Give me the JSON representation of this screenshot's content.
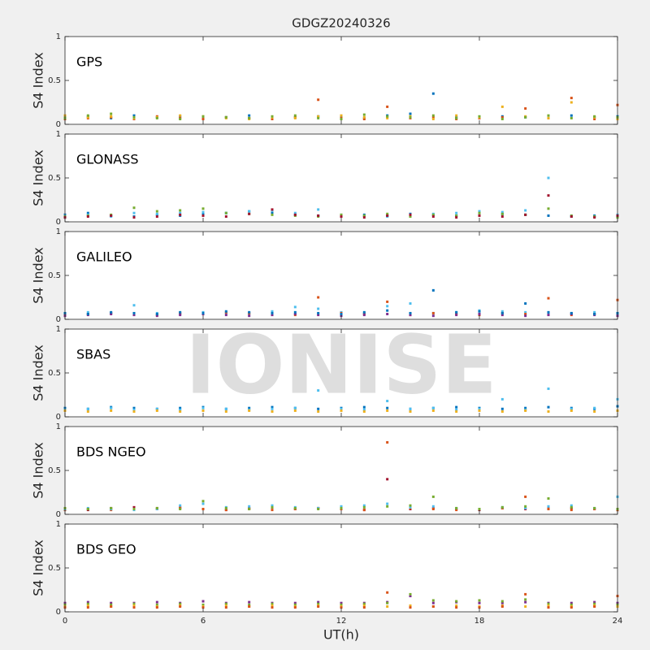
{
  "watermark": "IONISE",
  "chart_data": [
    {
      "type": "scatter",
      "title": "GDGZ20240326",
      "annotation": "GPS",
      "ylabel": "S4 Index",
      "x": [
        0,
        1,
        2,
        3,
        4,
        5,
        6,
        7,
        8,
        9,
        10,
        11,
        12,
        13,
        14,
        15,
        16,
        17,
        18,
        19,
        20,
        21,
        22,
        23,
        24
      ],
      "xlim": [
        0,
        24
      ],
      "xticks": [
        0,
        6,
        12,
        18,
        24
      ],
      "ylim": [
        0,
        1
      ],
      "yticks": [
        0,
        0.5,
        1
      ],
      "series": [
        {
          "color": "#0072BD",
          "values": [
            0.08,
            0.09,
            0.07,
            0.1,
            0.08,
            0.09,
            0.07,
            0.08,
            0.1,
            0.07,
            0.08,
            0.09,
            0.08,
            0.07,
            0.1,
            0.12,
            0.35,
            0.08,
            0.07,
            0.09,
            0.08,
            0.07,
            0.1,
            0.08,
            0.09
          ]
        },
        {
          "color": "#D95319",
          "values": [
            0.06,
            0.07,
            0.08,
            0.06,
            0.09,
            0.07,
            0.06,
            0.08,
            0.07,
            0.06,
            0.08,
            0.28,
            0.07,
            0.06,
            0.2,
            0.07,
            0.08,
            0.06,
            0.07,
            0.08,
            0.18,
            0.07,
            0.3,
            0.06,
            0.22
          ]
        },
        {
          "color": "#EDB120",
          "values": [
            0.1,
            0.08,
            0.09,
            0.07,
            0.08,
            0.1,
            0.09,
            0.07,
            0.06,
            0.08,
            0.07,
            0.09,
            0.1,
            0.08,
            0.07,
            0.09,
            0.06,
            0.1,
            0.08,
            0.2,
            0.09,
            0.07,
            0.25,
            0.08,
            0.06
          ]
        },
        {
          "color": "#77AC30",
          "values": [
            0.07,
            0.1,
            0.12,
            0.08,
            0.07,
            0.06,
            0.09,
            0.08,
            0.07,
            0.09,
            0.1,
            0.07,
            0.06,
            0.11,
            0.09,
            0.08,
            0.1,
            0.07,
            0.09,
            0.06,
            0.08,
            0.1,
            0.07,
            0.09,
            0.08
          ]
        }
      ]
    },
    {
      "type": "scatter",
      "annotation": "GLONASS",
      "ylabel": "S4 Index",
      "x": [
        0,
        1,
        2,
        3,
        4,
        5,
        6,
        7,
        8,
        9,
        10,
        11,
        12,
        13,
        14,
        15,
        16,
        17,
        18,
        19,
        20,
        21,
        22,
        23,
        24
      ],
      "xlim": [
        0,
        24
      ],
      "xticks": [
        0,
        6,
        12,
        18,
        24
      ],
      "ylim": [
        0,
        1
      ],
      "yticks": [
        0,
        0.5,
        1
      ],
      "series": [
        {
          "color": "#0072BD",
          "values": [
            0.08,
            0.1,
            0.07,
            0.06,
            0.08,
            0.07,
            0.09,
            0.1,
            0.12,
            0.1,
            0.08,
            0.07,
            0.06,
            0.08,
            0.07,
            0.09,
            0.08,
            0.07,
            0.1,
            0.09,
            0.08,
            0.07,
            0.06,
            0.07,
            0.06
          ]
        },
        {
          "color": "#4DBEEE",
          "values": [
            0.07,
            0.08,
            0.06,
            0.1,
            0.09,
            0.1,
            0.11,
            0.1,
            0.12,
            0.13,
            0.1,
            0.14,
            0.08,
            0.07,
            0.06,
            0.08,
            0.09,
            0.1,
            0.12,
            0.11,
            0.13,
            0.5,
            0.07,
            0.06,
            0.08
          ]
        },
        {
          "color": "#77AC30",
          "values": [
            0.06,
            0.07,
            0.08,
            0.16,
            0.12,
            0.13,
            0.15,
            0.1,
            0.09,
            0.08,
            0.07,
            0.06,
            0.08,
            0.07,
            0.09,
            0.06,
            0.08,
            0.07,
            0.1,
            0.09,
            0.08,
            0.15,
            0.07,
            0.06,
            0.05
          ]
        },
        {
          "color": "#A2142F",
          "values": [
            0.05,
            0.06,
            0.07,
            0.05,
            0.06,
            0.08,
            0.07,
            0.06,
            0.09,
            0.14,
            0.08,
            0.07,
            0.06,
            0.05,
            0.07,
            0.08,
            0.06,
            0.05,
            0.07,
            0.06,
            0.08,
            0.3,
            0.06,
            0.05,
            0.07
          ]
        }
      ]
    },
    {
      "type": "scatter",
      "annotation": "GALILEO",
      "ylabel": "S4 Index",
      "x": [
        0,
        1,
        2,
        3,
        4,
        5,
        6,
        7,
        8,
        9,
        10,
        11,
        12,
        13,
        14,
        15,
        16,
        17,
        18,
        19,
        20,
        21,
        22,
        23,
        24
      ],
      "xlim": [
        0,
        24
      ],
      "xticks": [
        0,
        6,
        12,
        18,
        24
      ],
      "ylim": [
        0,
        1
      ],
      "yticks": [
        0,
        0.5,
        1
      ],
      "series": [
        {
          "color": "#4DBEEE",
          "values": [
            0.06,
            0.08,
            0.07,
            0.16,
            0.07,
            0.06,
            0.08,
            0.07,
            0.06,
            0.09,
            0.14,
            0.12,
            0.08,
            0.07,
            0.15,
            0.18,
            0.07,
            0.08,
            0.1,
            0.09,
            0.08,
            0.06,
            0.07,
            0.08,
            0.06
          ]
        },
        {
          "color": "#D95319",
          "values": [
            0.05,
            0.06,
            0.07,
            0.06,
            0.05,
            0.07,
            0.06,
            0.08,
            0.07,
            0.06,
            0.05,
            0.25,
            0.07,
            0.06,
            0.2,
            0.05,
            0.07,
            0.06,
            0.05,
            0.07,
            0.06,
            0.24,
            0.05,
            0.06,
            0.22
          ]
        },
        {
          "color": "#7E2F8E",
          "values": [
            0.04,
            0.05,
            0.06,
            0.05,
            0.04,
            0.05,
            0.06,
            0.05,
            0.04,
            0.05,
            0.06,
            0.05,
            0.04,
            0.05,
            0.06,
            0.05,
            0.04,
            0.05,
            0.06,
            0.05,
            0.04,
            0.05,
            0.06,
            0.05,
            0.04
          ]
        },
        {
          "color": "#0072BD",
          "values": [
            0.07,
            0.06,
            0.08,
            0.07,
            0.06,
            0.08,
            0.07,
            0.09,
            0.08,
            0.07,
            0.08,
            0.07,
            0.06,
            0.08,
            0.1,
            0.07,
            0.33,
            0.08,
            0.09,
            0.07,
            0.18,
            0.08,
            0.07,
            0.06,
            0.07
          ]
        }
      ]
    },
    {
      "type": "scatter",
      "annotation": "SBAS",
      "ylabel": "S4 Index",
      "x": [
        0,
        1,
        2,
        3,
        4,
        5,
        6,
        7,
        8,
        9,
        10,
        11,
        12,
        13,
        14,
        15,
        16,
        17,
        18,
        19,
        20,
        21,
        22,
        23,
        24
      ],
      "xlim": [
        0,
        24
      ],
      "xticks": [
        0,
        6,
        12,
        18,
        24
      ],
      "ylim": [
        0,
        1
      ],
      "yticks": [
        0,
        0.5,
        1
      ],
      "series": [
        {
          "color": "#0072BD",
          "values": [
            0.1,
            0.09,
            0.11,
            0.1,
            0.09,
            0.1,
            0.11,
            0.09,
            0.1,
            0.11,
            0.1,
            0.09,
            0.1,
            0.11,
            0.1,
            0.09,
            0.1,
            0.11,
            0.1,
            0.09,
            0.1,
            0.11,
            0.1,
            0.09,
            0.12
          ]
        },
        {
          "color": "#4DBEEE",
          "values": [
            0.08,
            0.09,
            0.1,
            0.08,
            0.09,
            0.08,
            0.1,
            0.09,
            0.08,
            0.09,
            0.1,
            0.3,
            0.09,
            0.08,
            0.18,
            0.09,
            0.1,
            0.08,
            0.09,
            0.2,
            0.08,
            0.32,
            0.09,
            0.1,
            0.2
          ]
        },
        {
          "color": "#EDB120",
          "values": [
            0.07,
            0.06,
            0.07,
            0.06,
            0.07,
            0.06,
            0.07,
            0.06,
            0.07,
            0.06,
            0.07,
            0.06,
            0.07,
            0.06,
            0.07,
            0.06,
            0.07,
            0.06,
            0.07,
            0.06,
            0.07,
            0.06,
            0.07,
            0.06,
            0.07
          ]
        }
      ]
    },
    {
      "type": "scatter",
      "annotation": "BDS NGEO",
      "ylabel": "S4 Index",
      "x": [
        0,
        1,
        2,
        3,
        4,
        5,
        6,
        7,
        8,
        9,
        10,
        11,
        12,
        13,
        14,
        15,
        16,
        17,
        18,
        19,
        20,
        21,
        22,
        23,
        24
      ],
      "xlim": [
        0,
        24
      ],
      "xticks": [
        0,
        6,
        12,
        18,
        24
      ],
      "ylim": [
        0,
        1
      ],
      "yticks": [
        0,
        0.5,
        1
      ],
      "series": [
        {
          "color": "#A2142F",
          "values": [
            0.06,
            0.05,
            0.07,
            0.08,
            0.06,
            0.07,
            0.06,
            0.05,
            0.07,
            0.08,
            0.06,
            0.07,
            0.06,
            0.05,
            0.4,
            0.06,
            0.07,
            0.06,
            0.05,
            0.07,
            0.06,
            0.08,
            0.07,
            0.06,
            0.05
          ]
        },
        {
          "color": "#D95319",
          "values": [
            0.05,
            0.06,
            0.05,
            0.06,
            0.07,
            0.08,
            0.06,
            0.05,
            0.06,
            0.05,
            0.06,
            0.07,
            0.06,
            0.05,
            0.82,
            0.07,
            0.06,
            0.05,
            0.06,
            0.07,
            0.2,
            0.06,
            0.05,
            0.06,
            0.05
          ]
        },
        {
          "color": "#4DBEEE",
          "values": [
            0.06,
            0.07,
            0.06,
            0.05,
            0.06,
            0.1,
            0.12,
            0.08,
            0.09,
            0.1,
            0.08,
            0.07,
            0.09,
            0.1,
            0.12,
            0.08,
            0.09,
            0.07,
            0.06,
            0.08,
            0.07,
            0.09,
            0.1,
            0.07,
            0.2
          ]
        },
        {
          "color": "#77AC30",
          "values": [
            0.07,
            0.06,
            0.07,
            0.06,
            0.07,
            0.06,
            0.15,
            0.07,
            0.06,
            0.08,
            0.07,
            0.06,
            0.07,
            0.08,
            0.09,
            0.1,
            0.2,
            0.07,
            0.06,
            0.08,
            0.09,
            0.18,
            0.08,
            0.07,
            0.06
          ]
        }
      ]
    },
    {
      "type": "scatter",
      "annotation": "BDS GEO",
      "ylabel": "S4 Index",
      "xlabel": "UT(h)",
      "x": [
        0,
        1,
        2,
        3,
        4,
        5,
        6,
        7,
        8,
        9,
        10,
        11,
        12,
        13,
        14,
        15,
        16,
        17,
        18,
        19,
        20,
        21,
        22,
        23,
        24
      ],
      "xlim": [
        0,
        24
      ],
      "xticks": [
        0,
        6,
        12,
        18,
        24
      ],
      "ylim": [
        0,
        1
      ],
      "yticks": [
        0,
        0.5,
        1
      ],
      "series": [
        {
          "color": "#7E2F8E",
          "values": [
            0.1,
            0.11,
            0.1,
            0.1,
            0.11,
            0.1,
            0.12,
            0.1,
            0.11,
            0.1,
            0.1,
            0.11,
            0.1,
            0.1,
            0.11,
            0.18,
            0.1,
            0.11,
            0.1,
            0.1,
            0.11,
            0.1,
            0.1,
            0.11,
            0.1
          ]
        },
        {
          "color": "#77AC30",
          "values": [
            0.08,
            0.09,
            0.08,
            0.09,
            0.08,
            0.09,
            0.08,
            0.09,
            0.08,
            0.09,
            0.08,
            0.09,
            0.08,
            0.09,
            0.1,
            0.2,
            0.13,
            0.12,
            0.13,
            0.12,
            0.14,
            0.09,
            0.08,
            0.09,
            0.08
          ]
        },
        {
          "color": "#EDB120",
          "values": [
            0.06,
            0.07,
            0.06,
            0.07,
            0.06,
            0.07,
            0.06,
            0.07,
            0.06,
            0.07,
            0.06,
            0.07,
            0.06,
            0.07,
            0.06,
            0.07,
            0.06,
            0.07,
            0.06,
            0.07,
            0.06,
            0.07,
            0.06,
            0.07,
            0.06
          ]
        },
        {
          "color": "#D95319",
          "values": [
            0.05,
            0.05,
            0.06,
            0.05,
            0.05,
            0.06,
            0.05,
            0.05,
            0.06,
            0.05,
            0.05,
            0.06,
            0.05,
            0.05,
            0.22,
            0.05,
            0.06,
            0.05,
            0.05,
            0.06,
            0.2,
            0.05,
            0.05,
            0.06,
            0.18
          ]
        }
      ]
    }
  ]
}
